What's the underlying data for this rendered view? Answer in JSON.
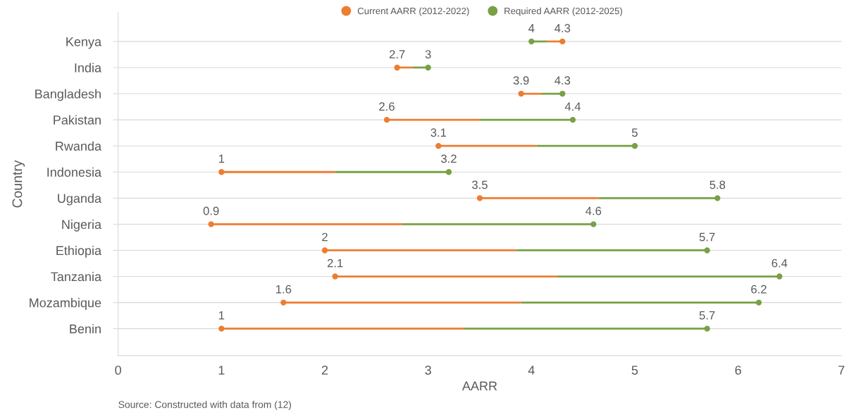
{
  "chart_data": {
    "type": "scatter",
    "orientation": "horizontal",
    "xlabel": "AARR",
    "ylabel": "Country",
    "categories": [
      "Kenya",
      "India",
      "Bangladesh",
      "Pakistan",
      "Rwanda",
      "Indonesia",
      "Uganda",
      "Nigeria",
      "Ethiopia",
      "Tanzania",
      "Mozambique",
      "Benin"
    ],
    "series": [
      {
        "name": "Current AARR (2012-2022)",
        "color": "#ed7d31",
        "values": [
          4.3,
          2.7,
          3.9,
          2.6,
          3.1,
          1,
          3.5,
          0.9,
          2,
          2.1,
          1.6,
          1
        ]
      },
      {
        "name": "Required AARR (2012-2025)",
        "color": "#78a145",
        "values": [
          4,
          3,
          4.3,
          4.4,
          5,
          3.2,
          5.8,
          4.6,
          5.7,
          6.4,
          6.2,
          5.7
        ]
      }
    ],
    "xlim": [
      0,
      7
    ],
    "xticks": [
      0,
      1,
      2,
      3,
      4,
      5,
      6,
      7
    ],
    "grid": "y",
    "legend": "top",
    "marker": "circle",
    "data_labels": true,
    "annotations": [
      "Source: Constructed with data from (12)"
    ]
  }
}
